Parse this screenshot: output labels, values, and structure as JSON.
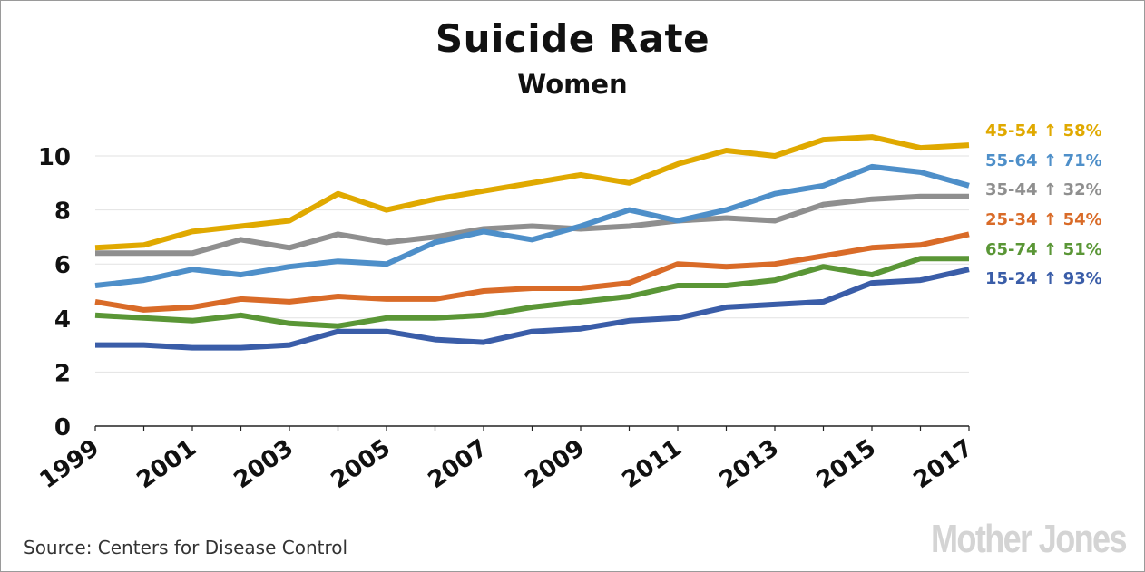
{
  "title": "Suicide Rate",
  "subtitle": "Women",
  "source": "Source: Centers for Disease Control",
  "logo_text": "Mother Jones",
  "legend": [
    {
      "label": "45-54",
      "change": "58%",
      "color": "#e0a900"
    },
    {
      "label": "55-64",
      "change": "71%",
      "color": "#4e8fc9"
    },
    {
      "label": "35-44",
      "change": "32%",
      "color": "#8f8f8f"
    },
    {
      "label": "25-34",
      "change": "54%",
      "color": "#d96b28"
    },
    {
      "label": "65-74",
      "change": "51%",
      "color": "#5a9636"
    },
    {
      "label": "15-24",
      "change": "93%",
      "color": "#3a5da8"
    }
  ],
  "chart_data": {
    "type": "line",
    "title": "Suicide Rate",
    "subtitle": "Women",
    "x": [
      1999,
      2000,
      2001,
      2002,
      2003,
      2004,
      2005,
      2006,
      2007,
      2008,
      2009,
      2010,
      2011,
      2012,
      2013,
      2014,
      2015,
      2016,
      2017
    ],
    "x_tick_labels": [
      "1999",
      "2001",
      "2003",
      "2005",
      "2007",
      "2009",
      "2011",
      "2013",
      "2015",
      "2017"
    ],
    "y_ticks": [
      0,
      2,
      4,
      6,
      8,
      10
    ],
    "ylim": [
      0,
      10.5
    ],
    "grid": true,
    "legend_position": "right",
    "series": [
      {
        "name": "45-54",
        "color": "#e0a900",
        "values": [
          6.6,
          6.7,
          7.2,
          7.4,
          7.6,
          8.6,
          8.0,
          8.4,
          8.7,
          9.0,
          9.3,
          9.0,
          9.7,
          10.2,
          10.0,
          10.6,
          10.7,
          10.3,
          10.4
        ]
      },
      {
        "name": "55-64",
        "color": "#4e8fc9",
        "values": [
          5.2,
          5.4,
          5.8,
          5.6,
          5.9,
          6.1,
          6.0,
          6.8,
          7.2,
          6.9,
          7.4,
          8.0,
          7.6,
          8.0,
          8.6,
          8.9,
          9.6,
          9.4,
          8.9
        ]
      },
      {
        "name": "35-44",
        "color": "#8f8f8f",
        "values": [
          6.4,
          6.4,
          6.4,
          6.9,
          6.6,
          7.1,
          6.8,
          7.0,
          7.3,
          7.4,
          7.3,
          7.4,
          7.6,
          7.7,
          7.6,
          8.2,
          8.4,
          8.5,
          8.5
        ]
      },
      {
        "name": "25-34",
        "color": "#d96b28",
        "values": [
          4.6,
          4.3,
          4.4,
          4.7,
          4.6,
          4.8,
          4.7,
          4.7,
          5.0,
          5.1,
          5.1,
          5.3,
          6.0,
          5.9,
          6.0,
          6.3,
          6.6,
          6.7,
          7.1
        ]
      },
      {
        "name": "65-74",
        "color": "#5a9636",
        "values": [
          4.1,
          4.0,
          3.9,
          4.1,
          3.8,
          3.7,
          4.0,
          4.0,
          4.1,
          4.4,
          4.6,
          4.8,
          5.2,
          5.2,
          5.4,
          5.9,
          5.6,
          6.2,
          6.2
        ]
      },
      {
        "name": "15-24",
        "color": "#3a5da8",
        "values": [
          3.0,
          3.0,
          2.9,
          2.9,
          3.0,
          3.5,
          3.5,
          3.2,
          3.1,
          3.5,
          3.6,
          3.9,
          4.0,
          4.4,
          4.5,
          4.6,
          5.3,
          5.4,
          5.8
        ]
      }
    ]
  }
}
